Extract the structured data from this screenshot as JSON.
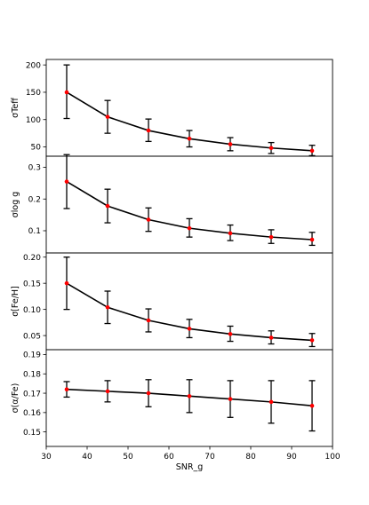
{
  "chart_data": {
    "type": "line",
    "sharex": true,
    "xlabel": "SNR_g",
    "xlim": [
      30,
      100
    ],
    "xticks": [
      30,
      40,
      50,
      60,
      70,
      80,
      90,
      100
    ],
    "x": [
      35,
      45,
      55,
      65,
      75,
      85,
      95
    ],
    "colors": {
      "line": "#000000",
      "marker": "#ff0000",
      "errorbar": "#000000",
      "frame": "#000000"
    },
    "panels": [
      {
        "ylabel": "σTeff",
        "ylim": [
          33,
          210
        ],
        "yticks": [
          50,
          100,
          150,
          200
        ],
        "yticklabels": [
          "50",
          "100",
          "150",
          "200"
        ],
        "values": [
          150,
          105,
          80,
          65,
          55,
          48,
          43
        ],
        "err_low": [
          48,
          30,
          20,
          15,
          12,
          10,
          9
        ],
        "err_high": [
          50,
          30,
          21,
          15,
          12,
          10,
          10
        ]
      },
      {
        "ylabel": "σlog g",
        "ylim": [
          0.03,
          0.335
        ],
        "yticks": [
          0.1,
          0.2,
          0.3
        ],
        "yticklabels": [
          "0.1",
          "0.2",
          "0.3"
        ],
        "values": [
          0.255,
          0.178,
          0.135,
          0.108,
          0.092,
          0.08,
          0.072
        ],
        "err_low": [
          0.085,
          0.053,
          0.037,
          0.028,
          0.023,
          0.02,
          0.018
        ],
        "err_high": [
          0.085,
          0.053,
          0.037,
          0.03,
          0.026,
          0.023,
          0.023
        ]
      },
      {
        "ylabel": "σ[Fe/H]",
        "ylim": [
          0.023,
          0.208
        ],
        "yticks": [
          0.05,
          0.1,
          0.15,
          0.2
        ],
        "yticklabels": [
          "0.05",
          "0.10",
          "0.15",
          "0.20"
        ],
        "values": [
          0.15,
          0.104,
          0.079,
          0.063,
          0.053,
          0.046,
          0.041
        ],
        "err_low": [
          0.05,
          0.031,
          0.022,
          0.017,
          0.014,
          0.012,
          0.012
        ],
        "err_high": [
          0.05,
          0.031,
          0.022,
          0.018,
          0.015,
          0.013,
          0.013
        ]
      },
      {
        "ylabel": "σ(α/Fe)",
        "ylim": [
          0.1425,
          0.1925
        ],
        "yticks": [
          0.15,
          0.16,
          0.17,
          0.18,
          0.19
        ],
        "yticklabels": [
          "0.15",
          "0.16",
          "0.17",
          "0.18",
          "0.19"
        ],
        "values": [
          0.172,
          0.171,
          0.17,
          0.1685,
          0.167,
          0.1655,
          0.1635
        ],
        "err_low": [
          0.004,
          0.0055,
          0.007,
          0.0085,
          0.0095,
          0.011,
          0.013
        ],
        "err_high": [
          0.004,
          0.0055,
          0.007,
          0.0085,
          0.0095,
          0.011,
          0.013
        ]
      }
    ]
  }
}
